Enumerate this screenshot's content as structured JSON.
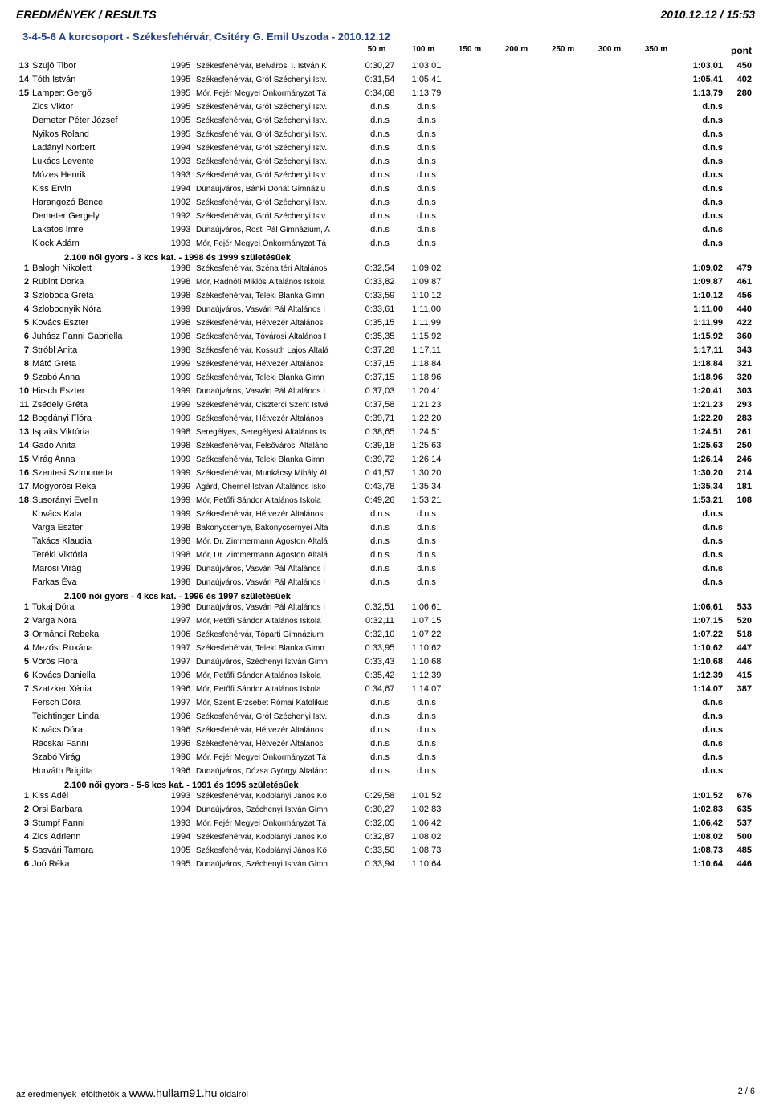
{
  "header": {
    "title": "EREDMÉNYEK / RESULTS",
    "datetime": "2010.12.12 / 15:53"
  },
  "subtitle": "3-4-5-6 A korcsoport - Székesfehérvár, Csitéry G. Emil Uszoda - 2010.12.12",
  "cols": {
    "c50": "50 m",
    "c100": "100 m",
    "c150": "150 m",
    "c200": "200 m",
    "c250": "250 m",
    "c300": "300 m",
    "c350": "350 m",
    "pont": "pont"
  },
  "sections": [
    {
      "header": null,
      "rows": [
        {
          "rank": "13",
          "name": "Szujó Tibor",
          "year": "1995",
          "club": "Székesfehérvár, Belvárosi I. István K",
          "t50": "0:30,27",
          "t100": "1:03,01",
          "result": "1:03,01",
          "pts": "450"
        },
        {
          "rank": "14",
          "name": "Tóth István",
          "year": "1995",
          "club": "Székesfehérvár, Gróf Széchenyi Istv.",
          "t50": "0:31,54",
          "t100": "1:05,41",
          "result": "1:05,41",
          "pts": "402"
        },
        {
          "rank": "15",
          "name": "Lampert Gergő",
          "year": "1995",
          "club": "Mór, Fejér Megyei Önkormányzat Tá",
          "t50": "0:34,68",
          "t100": "1:13,79",
          "result": "1:13,79",
          "pts": "280"
        },
        {
          "rank": "",
          "name": "Zics Viktor",
          "year": "1995",
          "club": "Székesfehérvár, Gróf Széchenyi Istv.",
          "t50": "d.n.s",
          "t100": "d.n.s",
          "result": "d.n.s",
          "pts": ""
        },
        {
          "rank": "",
          "name": "Demeter Péter József",
          "year": "1995",
          "club": "Székesfehérvár, Gróf Széchenyi Istv.",
          "t50": "d.n.s",
          "t100": "d.n.s",
          "result": "d.n.s",
          "pts": ""
        },
        {
          "rank": "",
          "name": "Nyikos Roland",
          "year": "1995",
          "club": "Székesfehérvár, Gróf Széchenyi Istv.",
          "t50": "d.n.s",
          "t100": "d.n.s",
          "result": "d.n.s",
          "pts": ""
        },
        {
          "rank": "",
          "name": "Ladányi Norbert",
          "year": "1994",
          "club": "Székesfehérvár, Gróf Széchenyi Istv.",
          "t50": "d.n.s",
          "t100": "d.n.s",
          "result": "d.n.s",
          "pts": ""
        },
        {
          "rank": "",
          "name": "Lukács Levente",
          "year": "1993",
          "club": "Székesfehérvár, Gróf Széchenyi Istv.",
          "t50": "d.n.s",
          "t100": "d.n.s",
          "result": "d.n.s",
          "pts": ""
        },
        {
          "rank": "",
          "name": "Mózes Henrik",
          "year": "1993",
          "club": "Székesfehérvár, Gróf Széchenyi Istv.",
          "t50": "d.n.s",
          "t100": "d.n.s",
          "result": "d.n.s",
          "pts": ""
        },
        {
          "rank": "",
          "name": "Kiss Ervin",
          "year": "1994",
          "club": "Dunaújváros, Bánki Donát Gimnáziu",
          "t50": "d.n.s",
          "t100": "d.n.s",
          "result": "d.n.s",
          "pts": ""
        },
        {
          "rank": "",
          "name": "Harangozó Bence",
          "year": "1992",
          "club": "Székesfehérvár, Gróf Széchenyi Istv.",
          "t50": "d.n.s",
          "t100": "d.n.s",
          "result": "d.n.s",
          "pts": ""
        },
        {
          "rank": "",
          "name": "Demeter Gergely",
          "year": "1992",
          "club": "Székesfehérvár, Gróf Széchenyi Istv.",
          "t50": "d.n.s",
          "t100": "d.n.s",
          "result": "d.n.s",
          "pts": ""
        },
        {
          "rank": "",
          "name": "Lakatos Imre",
          "year": "1993",
          "club": "Dunaújváros, Rosti Pál Gimnázium, A",
          "t50": "d.n.s",
          "t100": "d.n.s",
          "result": "d.n.s",
          "pts": ""
        },
        {
          "rank": "",
          "name": "Klock Ádám",
          "year": "1993",
          "club": "Mór, Fejér Megyei Önkormányzat Tá",
          "t50": "d.n.s",
          "t100": "d.n.s",
          "result": "d.n.s",
          "pts": ""
        }
      ]
    },
    {
      "header": "2.100 női gyors - 3 kcs kat.  -  1998 és 1999 születésűek",
      "rows": [
        {
          "rank": "1",
          "name": "Balogh Nikolett",
          "year": "1998",
          "club": "Székesfehérvár, Széna téri Általános",
          "t50": "0:32,54",
          "t100": "1:09,02",
          "result": "1:09,02",
          "pts": "479"
        },
        {
          "rank": "2",
          "name": "Rubint Dorka",
          "year": "1998",
          "club": "Mór, Radnóti Miklós Általános Iskola",
          "t50": "0:33,82",
          "t100": "1:09,87",
          "result": "1:09,87",
          "pts": "461"
        },
        {
          "rank": "3",
          "name": "Szloboda Gréta",
          "year": "1998",
          "club": "Székesfehérvár, Teleki Blanka Gimn",
          "t50": "0:33,59",
          "t100": "1:10,12",
          "result": "1:10,12",
          "pts": "456"
        },
        {
          "rank": "4",
          "name": "Szlobodnyik Nóra",
          "year": "1999",
          "club": "Dunaújváros, Vasvári Pál Általános I",
          "t50": "0:33,61",
          "t100": "1:11,00",
          "result": "1:11,00",
          "pts": "440"
        },
        {
          "rank": "5",
          "name": "Kovács Eszter",
          "year": "1998",
          "club": "Székesfehérvár, Hétvezér Általános",
          "t50": "0:35,15",
          "t100": "1:11,99",
          "result": "1:11,99",
          "pts": "422"
        },
        {
          "rank": "6",
          "name": "Juhász Fanni Gabriella",
          "year": "1998",
          "club": "Székesfehérvár, Tóvárosi Általános I",
          "t50": "0:35,35",
          "t100": "1:15,92",
          "result": "1:15,92",
          "pts": "360"
        },
        {
          "rank": "7",
          "name": "Stróbl Anita",
          "year": "1998",
          "club": "Székesfehérvár, Kossuth Lajos Általá",
          "t50": "0:37,28",
          "t100": "1:17,11",
          "result": "1:17,11",
          "pts": "343"
        },
        {
          "rank": "8",
          "name": "Mátó Gréta",
          "year": "1999",
          "club": "Székesfehérvár, Hétvezér Általános",
          "t50": "0:37,15",
          "t100": "1:18,84",
          "result": "1:18,84",
          "pts": "321"
        },
        {
          "rank": "9",
          "name": "Szabó Anna",
          "year": "1999",
          "club": "Székesfehérvár, Teleki Blanka Gimn",
          "t50": "0:37,15",
          "t100": "1:18,96",
          "result": "1:18,96",
          "pts": "320"
        },
        {
          "rank": "10",
          "name": "Hirsch Eszter",
          "year": "1999",
          "club": "Dunaújváros, Vasvári Pál Általános I",
          "t50": "0:37,03",
          "t100": "1:20,41",
          "result": "1:20,41",
          "pts": "303"
        },
        {
          "rank": "11",
          "name": "Zsédely Gréta",
          "year": "1999",
          "club": "Székesfehérvár, Ciszterci Szent Istvá",
          "t50": "0:37,58",
          "t100": "1:21,23",
          "result": "1:21,23",
          "pts": "293"
        },
        {
          "rank": "12",
          "name": "Bogdányi Flóra",
          "year": "1999",
          "club": "Székesfehérvár, Hétvezér Általános",
          "t50": "0:39,71",
          "t100": "1:22,20",
          "result": "1:22,20",
          "pts": "283"
        },
        {
          "rank": "13",
          "name": "Ispaits Viktória",
          "year": "1998",
          "club": "Seregélyes, Seregélyesi Általános Is",
          "t50": "0:38,65",
          "t100": "1:24,51",
          "result": "1:24,51",
          "pts": "261"
        },
        {
          "rank": "14",
          "name": "Gadó Anita",
          "year": "1998",
          "club": "Székesfehérvár, Felsővárosi Általánc",
          "t50": "0:39,18",
          "t100": "1:25,63",
          "result": "1:25,63",
          "pts": "250"
        },
        {
          "rank": "15",
          "name": "Virág Anna",
          "year": "1999",
          "club": "Székesfehérvár, Teleki Blanka Gimn",
          "t50": "0:39,72",
          "t100": "1:26,14",
          "result": "1:26,14",
          "pts": "246"
        },
        {
          "rank": "16",
          "name": "Szentesi Szimonetta",
          "year": "1999",
          "club": "Székesfehérvár, Munkácsy Mihály Ál",
          "t50": "0:41,57",
          "t100": "1:30,20",
          "result": "1:30,20",
          "pts": "214"
        },
        {
          "rank": "17",
          "name": "Mogyorósi Réka",
          "year": "1999",
          "club": "Agárd, Chernel István Általános Isko",
          "t50": "0:43,78",
          "t100": "1:35,34",
          "result": "1:35,34",
          "pts": "181"
        },
        {
          "rank": "18",
          "name": "Susorányi Evelin",
          "year": "1999",
          "club": "Mór, Petőfi Sándor Általános Iskola",
          "t50": "0:49,26",
          "t100": "1:53,21",
          "result": "1:53,21",
          "pts": "108"
        },
        {
          "rank": "",
          "name": "Kovács Kata",
          "year": "1999",
          "club": "Székesfehérvár, Hétvezér Általános",
          "t50": "d.n.s",
          "t100": "d.n.s",
          "result": "d.n.s",
          "pts": ""
        },
        {
          "rank": "",
          "name": "Varga Eszter",
          "year": "1998",
          "club": "Bakonycsernye, Bakonycsernyei Álta",
          "t50": "d.n.s",
          "t100": "d.n.s",
          "result": "d.n.s",
          "pts": ""
        },
        {
          "rank": "",
          "name": "Takács Klaudia",
          "year": "1998",
          "club": "Mór, Dr. Zimmermann Ágoston Általá",
          "t50": "d.n.s",
          "t100": "d.n.s",
          "result": "d.n.s",
          "pts": ""
        },
        {
          "rank": "",
          "name": "Teréki Viktória",
          "year": "1998",
          "club": "Mór, Dr. Zimmermann Ágoston Általá",
          "t50": "d.n.s",
          "t100": "d.n.s",
          "result": "d.n.s",
          "pts": ""
        },
        {
          "rank": "",
          "name": "Marosi Virág",
          "year": "1999",
          "club": "Dunaújváros, Vasvári Pál Általános I",
          "t50": "d.n.s",
          "t100": "d.n.s",
          "result": "d.n.s",
          "pts": ""
        },
        {
          "rank": "",
          "name": "Farkas Éva",
          "year": "1998",
          "club": "Dunaújváros, Vasvári Pál Általános I",
          "t50": "d.n.s",
          "t100": "d.n.s",
          "result": "d.n.s",
          "pts": ""
        }
      ]
    },
    {
      "header": "2.100 női gyors - 4 kcs kat.  -  1996 és 1997 születésűek",
      "rows": [
        {
          "rank": "1",
          "name": "Tokaj Dóra",
          "year": "1996",
          "club": "Dunaújváros, Vasvári Pál Általános I",
          "t50": "0:32,51",
          "t100": "1:06,61",
          "result": "1:06,61",
          "pts": "533"
        },
        {
          "rank": "2",
          "name": "Varga Nóra",
          "year": "1997",
          "club": "Mór, Petőfi Sándor Általános Iskola",
          "t50": "0:32,11",
          "t100": "1:07,15",
          "result": "1:07,15",
          "pts": "520"
        },
        {
          "rank": "3",
          "name": "Ormándi Rebeka",
          "year": "1996",
          "club": "Székesfehérvár, Tóparti Gimnázium",
          "t50": "0:32,10",
          "t100": "1:07,22",
          "result": "1:07,22",
          "pts": "518"
        },
        {
          "rank": "4",
          "name": "Mezősi Roxána",
          "year": "1997",
          "club": "Székesfehérvár, Teleki Blanka Gimn",
          "t50": "0:33,95",
          "t100": "1:10,62",
          "result": "1:10,62",
          "pts": "447"
        },
        {
          "rank": "5",
          "name": "Vörös Flóra",
          "year": "1997",
          "club": "Dunaújváros, Széchenyi István Gimn",
          "t50": "0:33,43",
          "t100": "1:10,68",
          "result": "1:10,68",
          "pts": "446"
        },
        {
          "rank": "6",
          "name": "Kovács Daniella",
          "year": "1996",
          "club": "Mór, Petőfi Sándor Általános Iskola",
          "t50": "0:35,42",
          "t100": "1:12,39",
          "result": "1:12,39",
          "pts": "415"
        },
        {
          "rank": "7",
          "name": "Szatzker Xénia",
          "year": "1996",
          "club": "Mór, Petőfi Sándor Általános Iskola",
          "t50": "0:34,67",
          "t100": "1:14,07",
          "result": "1:14,07",
          "pts": "387"
        },
        {
          "rank": "",
          "name": "Fersch Dóra",
          "year": "1997",
          "club": "Mór, Szent Erzsébet Római Katolikus",
          "t50": "d.n.s",
          "t100": "d.n.s",
          "result": "d.n.s",
          "pts": ""
        },
        {
          "rank": "",
          "name": "Teichtinger Linda",
          "year": "1996",
          "club": "Székesfehérvár, Gróf Széchenyi Istv.",
          "t50": "d.n.s",
          "t100": "d.n.s",
          "result": "d.n.s",
          "pts": ""
        },
        {
          "rank": "",
          "name": "Kovács Dóra",
          "year": "1996",
          "club": "Székesfehérvár, Hétvezér Általános",
          "t50": "d.n.s",
          "t100": "d.n.s",
          "result": "d.n.s",
          "pts": ""
        },
        {
          "rank": "",
          "name": "Rácskai Fanni",
          "year": "1996",
          "club": "Székesfehérvár, Hétvezér Általános",
          "t50": "d.n.s",
          "t100": "d.n.s",
          "result": "d.n.s",
          "pts": ""
        },
        {
          "rank": "",
          "name": "Szabó Virág",
          "year": "1996",
          "club": "Mór, Fejér Megyei Önkormányzat Tá",
          "t50": "d.n.s",
          "t100": "d.n.s",
          "result": "d.n.s",
          "pts": ""
        },
        {
          "rank": "",
          "name": "Horváth Brigitta",
          "year": "1996",
          "club": "Dunaújváros, Dózsa György Általánc",
          "t50": "d.n.s",
          "t100": "d.n.s",
          "result": "d.n.s",
          "pts": ""
        }
      ]
    },
    {
      "header": "2.100 női gyors - 5-6 kcs kat.  -  1991 és 1995 születésűek",
      "rows": [
        {
          "rank": "1",
          "name": "Kiss Adél",
          "year": "1993",
          "club": "Székesfehérvár, Kodolányi János Kö",
          "t50": "0:29,58",
          "t100": "1:01,52",
          "result": "1:01,52",
          "pts": "676"
        },
        {
          "rank": "2",
          "name": "Örsi Barbara",
          "year": "1994",
          "club": "Dunaújváros, Széchenyi István Gimn",
          "t50": "0:30,27",
          "t100": "1:02,83",
          "result": "1:02,83",
          "pts": "635"
        },
        {
          "rank": "3",
          "name": "Stumpf Fanni",
          "year": "1993",
          "club": "Mór, Fejér Megyei Önkormányzat Tá",
          "t50": "0:32,05",
          "t100": "1:06,42",
          "result": "1:06,42",
          "pts": "537"
        },
        {
          "rank": "4",
          "name": "Zics Adrienn",
          "year": "1994",
          "club": "Székesfehérvár, Kodolányi János Kö",
          "t50": "0:32,87",
          "t100": "1:08,02",
          "result": "1:08,02",
          "pts": "500"
        },
        {
          "rank": "5",
          "name": "Sasvári Tamara",
          "year": "1995",
          "club": "Székesfehérvár, Kodolányi János Kö",
          "t50": "0:33,50",
          "t100": "1:08,73",
          "result": "1:08,73",
          "pts": "485"
        },
        {
          "rank": "6",
          "name": "Joó Réka",
          "year": "1995",
          "club": "Dunaújváros, Széchenyi István Gimn",
          "t50": "0:33,94",
          "t100": "1:10,64",
          "result": "1:10,64",
          "pts": "446"
        }
      ]
    }
  ],
  "footer": {
    "prefix": "az eredmények letölthetők a ",
    "site": "www.hullam91.hu",
    "suffix": " oldalról",
    "page": "2 / 6"
  }
}
